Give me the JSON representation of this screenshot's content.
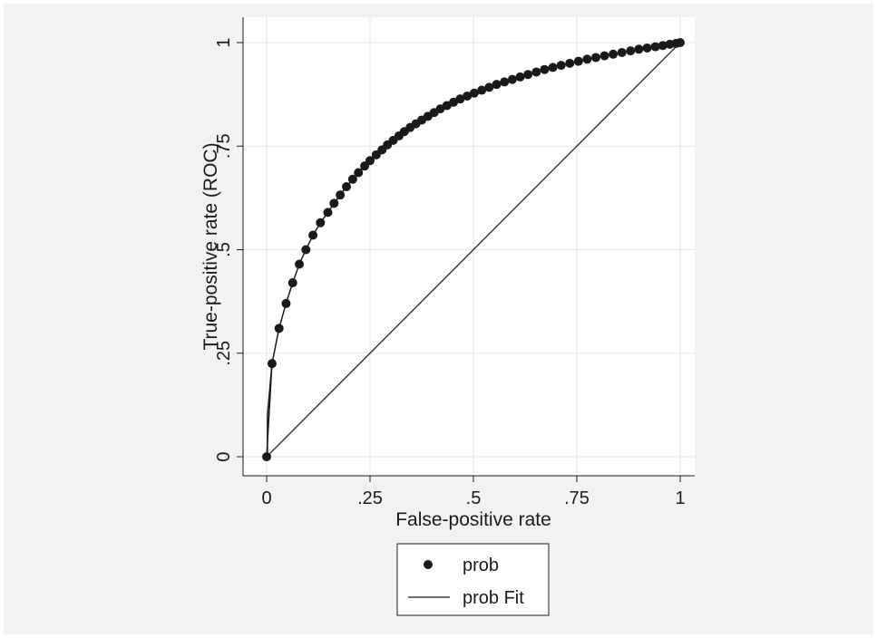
{
  "chart_data": {
    "type": "scatter",
    "xlabel": "False-positive rate",
    "ylabel": "True-positive rate (ROC)",
    "xlim": [
      0,
      1
    ],
    "ylim": [
      0,
      1
    ],
    "x_ticks": [
      {
        "value": 0,
        "label": "0"
      },
      {
        "value": 0.25,
        "label": ".25"
      },
      {
        "value": 0.5,
        "label": ".5"
      },
      {
        "value": 0.75,
        "label": ".75"
      },
      {
        "value": 1,
        "label": "1"
      }
    ],
    "y_ticks": [
      {
        "value": 0,
        "label": "0"
      },
      {
        "value": 0.25,
        "label": ".25"
      },
      {
        "value": 0.5,
        "label": ".5"
      },
      {
        "value": 0.75,
        "label": ".75"
      },
      {
        "value": 1,
        "label": "1"
      }
    ],
    "grid": true,
    "legend_position": "bottom",
    "series": [
      {
        "name": "prob",
        "kind": "points",
        "color": "#1a1a1a",
        "x": [
          0,
          0.013,
          0.03,
          0.047,
          0.063,
          0.079,
          0.095,
          0.112,
          0.13,
          0.148,
          0.163,
          0.178,
          0.193,
          0.208,
          0.222,
          0.237,
          0.25,
          0.265,
          0.279,
          0.292,
          0.306,
          0.32,
          0.333,
          0.347,
          0.361,
          0.375,
          0.39,
          0.405,
          0.42,
          0.436,
          0.452,
          0.468,
          0.485,
          0.502,
          0.52,
          0.538,
          0.556,
          0.575,
          0.594,
          0.613,
          0.632,
          0.652,
          0.672,
          0.692,
          0.712,
          0.733,
          0.754,
          0.775,
          0.796,
          0.817,
          0.838,
          0.859,
          0.88,
          0.9,
          0.92,
          0.94,
          0.958,
          0.975,
          0.99,
          1
        ],
        "y": [
          0,
          0.225,
          0.31,
          0.37,
          0.42,
          0.465,
          0.5,
          0.535,
          0.565,
          0.59,
          0.612,
          0.632,
          0.652,
          0.67,
          0.686,
          0.702,
          0.715,
          0.729,
          0.741,
          0.753,
          0.764,
          0.775,
          0.785,
          0.795,
          0.804,
          0.813,
          0.822,
          0.831,
          0.84,
          0.848,
          0.856,
          0.864,
          0.871,
          0.878,
          0.885,
          0.892,
          0.899,
          0.905,
          0.911,
          0.917,
          0.923,
          0.929,
          0.935,
          0.94,
          0.945,
          0.95,
          0.955,
          0.96,
          0.964,
          0.968,
          0.972,
          0.976,
          0.98,
          0.984,
          0.987,
          0.99,
          0.993,
          0.996,
          0.998,
          1
        ]
      },
      {
        "name": "prob Fit",
        "kind": "line",
        "color": "#3a3a3a",
        "x": [
          0,
          1
        ],
        "y": [
          0,
          1
        ]
      }
    ],
    "colors": {
      "background": "#f2f2f2",
      "plot_area": "#ffffff",
      "gridline": "#e6e6e6",
      "marker": "#1a1a1a",
      "line": "#3a3a3a"
    }
  }
}
